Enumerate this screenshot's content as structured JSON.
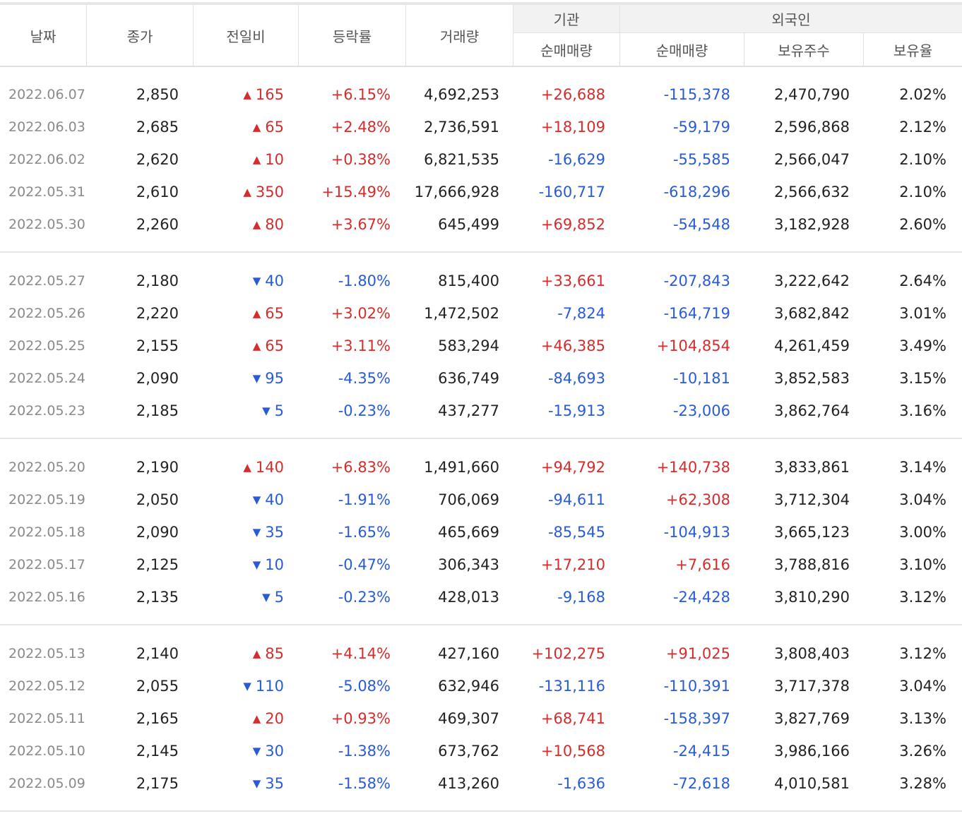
{
  "header": {
    "date": "날짜",
    "close": "종가",
    "change": "전일비",
    "rate": "등락률",
    "volume": "거래량",
    "institution": "기관",
    "inst_net": "순매매량",
    "foreign": "외국인",
    "foreign_net": "순매매량",
    "foreign_shares": "보유주수",
    "foreign_ratio": "보유율"
  },
  "colors": {
    "up": "#d42d2d",
    "down": "#2a5bd7"
  },
  "groups": [
    [
      {
        "date": "2022.06.07",
        "close": "2,850",
        "dir": "up",
        "change": "165",
        "rate": "+6.15%",
        "volume": "4,692,253",
        "inst": "+26,688",
        "foreign": "-115,378",
        "shares": "2,470,790",
        "ratio": "2.02%"
      },
      {
        "date": "2022.06.03",
        "close": "2,685",
        "dir": "up",
        "change": "65",
        "rate": "+2.48%",
        "volume": "2,736,591",
        "inst": "+18,109",
        "foreign": "-59,179",
        "shares": "2,596,868",
        "ratio": "2.12%"
      },
      {
        "date": "2022.06.02",
        "close": "2,620",
        "dir": "up",
        "change": "10",
        "rate": "+0.38%",
        "volume": "6,821,535",
        "inst": "-16,629",
        "foreign": "-55,585",
        "shares": "2,566,047",
        "ratio": "2.10%"
      },
      {
        "date": "2022.05.31",
        "close": "2,610",
        "dir": "up",
        "change": "350",
        "rate": "+15.49%",
        "volume": "17,666,928",
        "inst": "-160,717",
        "foreign": "-618,296",
        "shares": "2,566,632",
        "ratio": "2.10%"
      },
      {
        "date": "2022.05.30",
        "close": "2,260",
        "dir": "up",
        "change": "80",
        "rate": "+3.67%",
        "volume": "645,499",
        "inst": "+69,852",
        "foreign": "-54,548",
        "shares": "3,182,928",
        "ratio": "2.60%"
      }
    ],
    [
      {
        "date": "2022.05.27",
        "close": "2,180",
        "dir": "down",
        "change": "40",
        "rate": "-1.80%",
        "volume": "815,400",
        "inst": "+33,661",
        "foreign": "-207,843",
        "shares": "3,222,642",
        "ratio": "2.64%"
      },
      {
        "date": "2022.05.26",
        "close": "2,220",
        "dir": "up",
        "change": "65",
        "rate": "+3.02%",
        "volume": "1,472,502",
        "inst": "-7,824",
        "foreign": "-164,719",
        "shares": "3,682,842",
        "ratio": "3.01%"
      },
      {
        "date": "2022.05.25",
        "close": "2,155",
        "dir": "up",
        "change": "65",
        "rate": "+3.11%",
        "volume": "583,294",
        "inst": "+46,385",
        "foreign": "+104,854",
        "shares": "4,261,459",
        "ratio": "3.49%"
      },
      {
        "date": "2022.05.24",
        "close": "2,090",
        "dir": "down",
        "change": "95",
        "rate": "-4.35%",
        "volume": "636,749",
        "inst": "-84,693",
        "foreign": "-10,181",
        "shares": "3,852,583",
        "ratio": "3.15%"
      },
      {
        "date": "2022.05.23",
        "close": "2,185",
        "dir": "down",
        "change": "5",
        "rate": "-0.23%",
        "volume": "437,277",
        "inst": "-15,913",
        "foreign": "-23,006",
        "shares": "3,862,764",
        "ratio": "3.16%"
      }
    ],
    [
      {
        "date": "2022.05.20",
        "close": "2,190",
        "dir": "up",
        "change": "140",
        "rate": "+6.83%",
        "volume": "1,491,660",
        "inst": "+94,792",
        "foreign": "+140,738",
        "shares": "3,833,861",
        "ratio": "3.14%"
      },
      {
        "date": "2022.05.19",
        "close": "2,050",
        "dir": "down",
        "change": "40",
        "rate": "-1.91%",
        "volume": "706,069",
        "inst": "-94,611",
        "foreign": "+62,308",
        "shares": "3,712,304",
        "ratio": "3.04%"
      },
      {
        "date": "2022.05.18",
        "close": "2,090",
        "dir": "down",
        "change": "35",
        "rate": "-1.65%",
        "volume": "465,669",
        "inst": "-85,545",
        "foreign": "-104,913",
        "shares": "3,665,123",
        "ratio": "3.00%"
      },
      {
        "date": "2022.05.17",
        "close": "2,125",
        "dir": "down",
        "change": "10",
        "rate": "-0.47%",
        "volume": "306,343",
        "inst": "+17,210",
        "foreign": "+7,616",
        "shares": "3,788,816",
        "ratio": "3.10%"
      },
      {
        "date": "2022.05.16",
        "close": "2,135",
        "dir": "down",
        "change": "5",
        "rate": "-0.23%",
        "volume": "428,013",
        "inst": "-9,168",
        "foreign": "-24,428",
        "shares": "3,810,290",
        "ratio": "3.12%"
      }
    ],
    [
      {
        "date": "2022.05.13",
        "close": "2,140",
        "dir": "up",
        "change": "85",
        "rate": "+4.14%",
        "volume": "427,160",
        "inst": "+102,275",
        "foreign": "+91,025",
        "shares": "3,808,403",
        "ratio": "3.12%"
      },
      {
        "date": "2022.05.12",
        "close": "2,055",
        "dir": "down",
        "change": "110",
        "rate": "-5.08%",
        "volume": "632,946",
        "inst": "-131,116",
        "foreign": "-110,391",
        "shares": "3,717,378",
        "ratio": "3.04%"
      },
      {
        "date": "2022.05.11",
        "close": "2,165",
        "dir": "up",
        "change": "20",
        "rate": "+0.93%",
        "volume": "469,307",
        "inst": "+68,741",
        "foreign": "-158,397",
        "shares": "3,827,769",
        "ratio": "3.13%"
      },
      {
        "date": "2022.05.10",
        "close": "2,145",
        "dir": "down",
        "change": "30",
        "rate": "-1.38%",
        "volume": "673,762",
        "inst": "+10,568",
        "foreign": "-24,415",
        "shares": "3,986,166",
        "ratio": "3.26%"
      },
      {
        "date": "2022.05.09",
        "close": "2,175",
        "dir": "down",
        "change": "35",
        "rate": "-1.58%",
        "volume": "413,260",
        "inst": "-1,636",
        "foreign": "-72,618",
        "shares": "4,010,581",
        "ratio": "3.28%"
      }
    ]
  ]
}
